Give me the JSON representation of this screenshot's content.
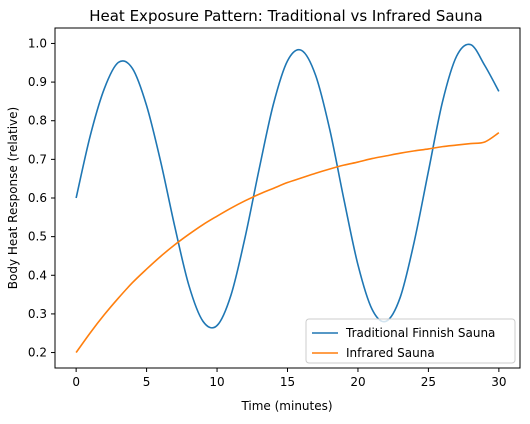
{
  "chart_data": {
    "type": "line",
    "title": "Heat Exposure Pattern: Traditional vs Infrared Sauna",
    "xlabel": "Time (minutes)",
    "ylabel": "Body Heat Response (relative)",
    "xlim": [
      -1.5,
      31.5
    ],
    "ylim": [
      0.16,
      1.04
    ],
    "x_ticks": [
      0,
      5,
      10,
      15,
      20,
      25,
      30
    ],
    "y_ticks": [
      0.2,
      0.3,
      0.4,
      0.5,
      0.6,
      0.7,
      0.8,
      0.9,
      1.0
    ],
    "x_tick_labels": [
      "0",
      "5",
      "10",
      "15",
      "20",
      "25",
      "30"
    ],
    "y_tick_labels": [
      "0.2",
      "0.3",
      "0.4",
      "0.5",
      "0.6",
      "0.7",
      "0.8",
      "0.9",
      "1.0"
    ],
    "grid": false,
    "legend_position": "lower-right",
    "series": [
      {
        "name": "Traditional Finnish Sauna",
        "color": "#1f77b4",
        "x": [
          0,
          1,
          2,
          3,
          4,
          5,
          6,
          7,
          8,
          9,
          10,
          11,
          12,
          13,
          14,
          15,
          16,
          17,
          18,
          19,
          20,
          21,
          22,
          23,
          24,
          25,
          26,
          27,
          28,
          29,
          30
        ],
        "y": [
          0.6,
          0.761,
          0.883,
          0.951,
          0.935,
          0.839,
          0.694,
          0.526,
          0.374,
          0.281,
          0.27,
          0.35,
          0.5,
          0.677,
          0.843,
          0.955,
          0.982,
          0.917,
          0.777,
          0.597,
          0.427,
          0.312,
          0.281,
          0.343,
          0.488,
          0.669,
          0.849,
          0.967,
          0.997,
          0.943,
          0.876
        ]
      },
      {
        "name": "Infrared Sauna",
        "color": "#ff7f0e",
        "x": [
          0,
          1,
          2,
          3,
          4,
          5,
          6,
          7,
          8,
          9,
          10,
          11,
          12,
          13,
          14,
          15,
          16,
          17,
          18,
          19,
          20,
          21,
          22,
          23,
          24,
          25,
          26,
          27,
          28,
          29,
          30
        ],
        "y": [
          0.2,
          0.251,
          0.298,
          0.341,
          0.381,
          0.416,
          0.449,
          0.479,
          0.506,
          0.531,
          0.553,
          0.574,
          0.593,
          0.61,
          0.625,
          0.64,
          0.652,
          0.664,
          0.675,
          0.685,
          0.693,
          0.702,
          0.709,
          0.716,
          0.722,
          0.727,
          0.733,
          0.737,
          0.741,
          0.745,
          0.769
        ]
      }
    ]
  }
}
